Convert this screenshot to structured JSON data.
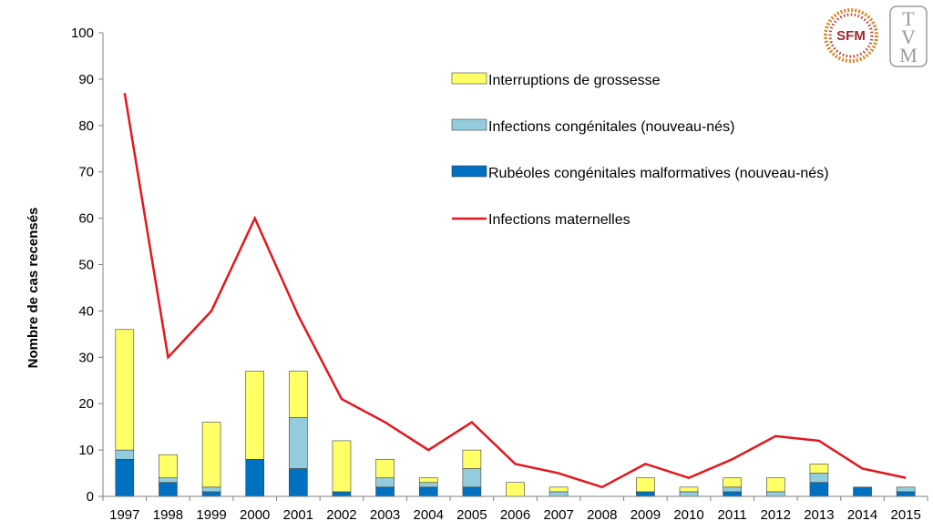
{
  "colors": {
    "interruptions": "#ffff66",
    "infections_cong": "#93cddd",
    "rubeoles": "#0070c0",
    "maternelles": "#e3171d",
    "axis": "#808080",
    "bar_stroke": "#404040"
  },
  "logos": {
    "sfm": "SFM",
    "tvm": [
      "T",
      "V",
      "M"
    ]
  },
  "chart_data": {
    "type": "bar",
    "stacked": true,
    "ylabel": "Nombre de cas recensés",
    "xlabel": "",
    "ylim": [
      0,
      100
    ],
    "yticks": [
      0,
      10,
      20,
      30,
      40,
      50,
      60,
      70,
      80,
      90,
      100
    ],
    "categories": [
      "1997",
      "1998",
      "1999",
      "2000",
      "2001",
      "2002",
      "2003",
      "2004",
      "2005",
      "2006",
      "2007",
      "2008",
      "2009",
      "2010",
      "2011",
      "2012",
      "2013",
      "2014",
      "2015"
    ],
    "series": [
      {
        "name": "Rubéoles congénitales malformatives (nouveau-nés)",
        "kind": "bar",
        "color_key": "rubeoles",
        "values": [
          8,
          3,
          1,
          8,
          6,
          1,
          2,
          2,
          2,
          0,
          0,
          0,
          1,
          0,
          1,
          0,
          3,
          2,
          1
        ]
      },
      {
        "name": "Infections congénitales (nouveau-nés)",
        "kind": "bar",
        "color_key": "infections_cong",
        "values": [
          2,
          1,
          1,
          0,
          11,
          0,
          2,
          1,
          4,
          0,
          1,
          0,
          0,
          1,
          1,
          1,
          2,
          0,
          1
        ]
      },
      {
        "name": "Interruptions de grossesse",
        "kind": "bar",
        "color_key": "interruptions",
        "values": [
          26,
          5,
          14,
          19,
          10,
          11,
          4,
          1,
          4,
          3,
          1,
          0,
          3,
          1,
          2,
          3,
          2,
          0,
          0
        ]
      },
      {
        "name": "Infections maternelles",
        "kind": "line",
        "color_key": "maternelles",
        "values": [
          87,
          30,
          40,
          60,
          39,
          21,
          16,
          10,
          16,
          7,
          5,
          2,
          7,
          4,
          8,
          13,
          12,
          6,
          4
        ]
      }
    ],
    "legend_order": [
      2,
      1,
      0,
      3
    ],
    "legend_position": "top-right"
  }
}
